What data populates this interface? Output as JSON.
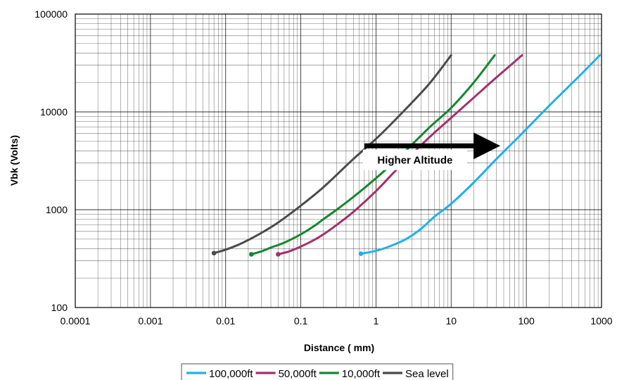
{
  "chart_data": {
    "type": "line",
    "title": "",
    "xlabel": "Distance ( mm)",
    "ylabel": "Vbk (Volts)",
    "xscale": "log",
    "yscale": "log",
    "xlim": [
      0.0001,
      1000
    ],
    "ylim": [
      100,
      100000
    ],
    "grid": true,
    "legend_position": "bottom",
    "x_ticks": [
      "0.0001",
      "0.001",
      "0.01",
      "0.1",
      "1",
      "10",
      "100",
      "1000"
    ],
    "y_ticks": [
      "100",
      "1000",
      "10000",
      "100000"
    ],
    "annotation": {
      "text": "Higher Altitude",
      "arrow_from": [
        0.7,
        4500
      ],
      "arrow_to": [
        45,
        4500
      ]
    },
    "series": [
      {
        "name": "100,000ft",
        "color": "#1fb1e8",
        "x": [
          0.63,
          1.0,
          1.5,
          2.5,
          4,
          6,
          10,
          20,
          40,
          80,
          200,
          500,
          950
        ],
        "y": [
          355,
          380,
          420,
          500,
          640,
          850,
          1150,
          1900,
          3300,
          5600,
          11500,
          23000,
          38000
        ]
      },
      {
        "name": "50,000ft",
        "color": "#a3306a",
        "x": [
          0.05,
          0.07,
          0.1,
          0.15,
          0.2,
          0.3,
          0.5,
          1,
          2,
          5,
          10,
          20,
          40,
          88
        ],
        "y": [
          350,
          375,
          420,
          490,
          560,
          700,
          950,
          1550,
          2700,
          5400,
          8700,
          14000,
          22500,
          38000
        ]
      },
      {
        "name": "10,000ft",
        "color": "#14862f",
        "x": [
          0.022,
          0.03,
          0.04,
          0.06,
          0.1,
          0.15,
          0.2,
          0.3,
          0.5,
          1,
          2,
          5,
          10,
          20,
          38
        ],
        "y": [
          350,
          375,
          410,
          460,
          560,
          680,
          800,
          1000,
          1350,
          2100,
          3400,
          6800,
          11000,
          20000,
          38000
        ]
      },
      {
        "name": "Sea level",
        "color": "#4a4a4a",
        "x": [
          0.007,
          0.01,
          0.015,
          0.02,
          0.03,
          0.05,
          0.1,
          0.2,
          0.5,
          1,
          2,
          5,
          10
        ],
        "y": [
          360,
          390,
          440,
          490,
          580,
          740,
          1100,
          1700,
          3300,
          5300,
          9000,
          19000,
          38000
        ]
      }
    ]
  }
}
